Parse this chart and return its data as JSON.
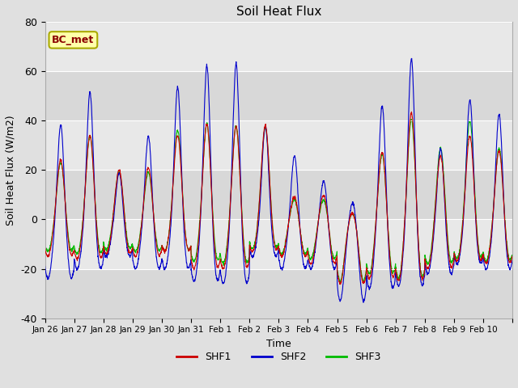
{
  "title": "Soil Heat Flux",
  "ylabel": "Soil Heat Flux (W/m2)",
  "xlabel": "Time",
  "ylim": [
    -40,
    80
  ],
  "yticks": [
    -40,
    -20,
    0,
    20,
    40,
    60,
    80
  ],
  "colors": {
    "SHF1": "#cc0000",
    "SHF2": "#0000cc",
    "SHF3": "#00bb00"
  },
  "annotation_text": "BC_met",
  "annotation_fgcolor": "#8b0000",
  "annotation_bgcolor": "#ffffaa",
  "annotation_edgecolor": "#aaaa00",
  "x_tick_labels": [
    "Jan 26",
    "Jan 27",
    "Jan 28",
    "Jan 29",
    "Jan 30",
    "Jan 31",
    "Feb 1",
    "Feb 2",
    "Feb 3",
    "Feb 4",
    "Feb 5",
    "Feb 6",
    "Feb 7",
    "Feb 8",
    "Feb 9",
    "Feb 10"
  ],
  "fig_facecolor": "#e0e0e0",
  "ax_facecolor": "#d0d0d0",
  "grid_color": "#ffffff",
  "legend_labels": [
    "SHF1",
    "SHF2",
    "SHF3"
  ],
  "day_peaks_shf2": [
    40,
    53,
    20,
    35,
    55,
    64,
    65,
    39,
    27,
    17,
    9,
    48,
    67,
    30,
    50,
    44
  ],
  "day_peaks_shf1": [
    25,
    35,
    21,
    22,
    35,
    40,
    39,
    39,
    10,
    11,
    4,
    29,
    45,
    27,
    35,
    29
  ],
  "day_peaks_shf3": [
    24,
    35,
    20,
    20,
    37,
    40,
    39,
    38,
    9,
    9,
    4,
    28,
    42,
    30,
    41,
    30
  ],
  "day_troughs_shf2": [
    -24,
    -20,
    -15,
    -20,
    -20,
    -25,
    -26,
    -15,
    -20,
    -20,
    -33,
    -28,
    -27,
    -22,
    -18,
    -20
  ],
  "day_troughs_shf1": [
    -15,
    -16,
    -14,
    -15,
    -13,
    -20,
    -20,
    -13,
    -15,
    -18,
    -26,
    -24,
    -25,
    -20,
    -17,
    -18
  ],
  "day_troughs_shf3": [
    -13,
    -14,
    -12,
    -13,
    -13,
    -17,
    -18,
    -12,
    -14,
    -16,
    -25,
    -22,
    -24,
    -18,
    -16,
    -17
  ]
}
